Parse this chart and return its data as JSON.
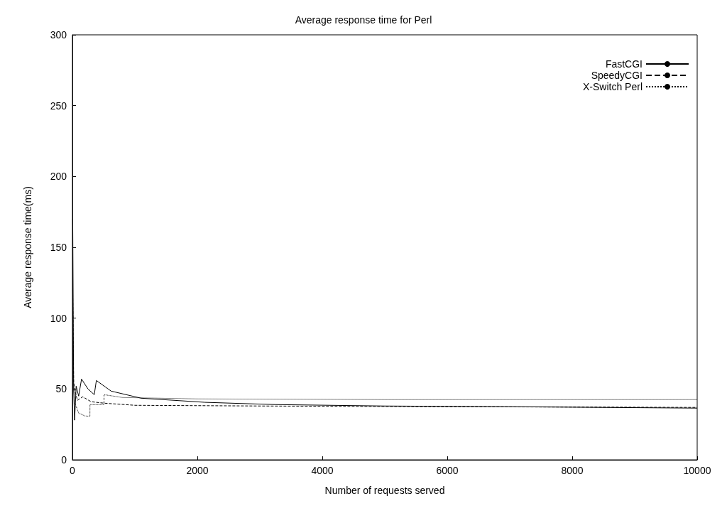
{
  "chart_data": {
    "type": "line",
    "title": "Average response time for Perl",
    "xlabel": "Number of requests served",
    "ylabel": "Average response time(ms)",
    "xlim": [
      0,
      10000
    ],
    "xticks": [
      0,
      2000,
      4000,
      6000,
      8000,
      10000
    ],
    "ylim": [
      0,
      300
    ],
    "yticks": [
      0,
      50,
      100,
      150,
      200,
      250,
      300
    ],
    "grid": false,
    "legend": "top right",
    "marker": "none",
    "series": [
      {
        "name": "FastCGI",
        "color": "#000000",
        "line_style": "solid",
        "x": [
          5,
          20,
          35,
          60,
          100,
          146,
          250,
          350,
          383,
          620,
          1100,
          2120,
          3240,
          5000,
          7000,
          10000
        ],
        "values": [
          170,
          50,
          28,
          52,
          45,
          57,
          50,
          46,
          56,
          48.5,
          43.5,
          40.6,
          39,
          38,
          37.5,
          36.5
        ]
      },
      {
        "name": "SpeedyCGI",
        "color": "#000000",
        "line_style": "dashed",
        "x": [
          5,
          20,
          45,
          80,
          165,
          300,
          505,
          1000,
          3000,
          6000,
          10000
        ],
        "values": [
          120,
          55,
          48,
          42,
          44.5,
          41,
          40,
          38.5,
          38,
          37.5,
          37
        ]
      },
      {
        "name": "X-Switch Perl",
        "color": "#000000",
        "line_style": "dotted",
        "x": [
          5,
          20,
          40,
          100,
          200,
          280,
          281,
          505,
          506,
          800,
          2000,
          5000,
          10000
        ],
        "values": [
          75,
          50,
          40,
          33,
          31,
          30.7,
          39,
          39,
          46,
          44,
          43,
          42.5,
          42.5
        ]
      }
    ]
  }
}
